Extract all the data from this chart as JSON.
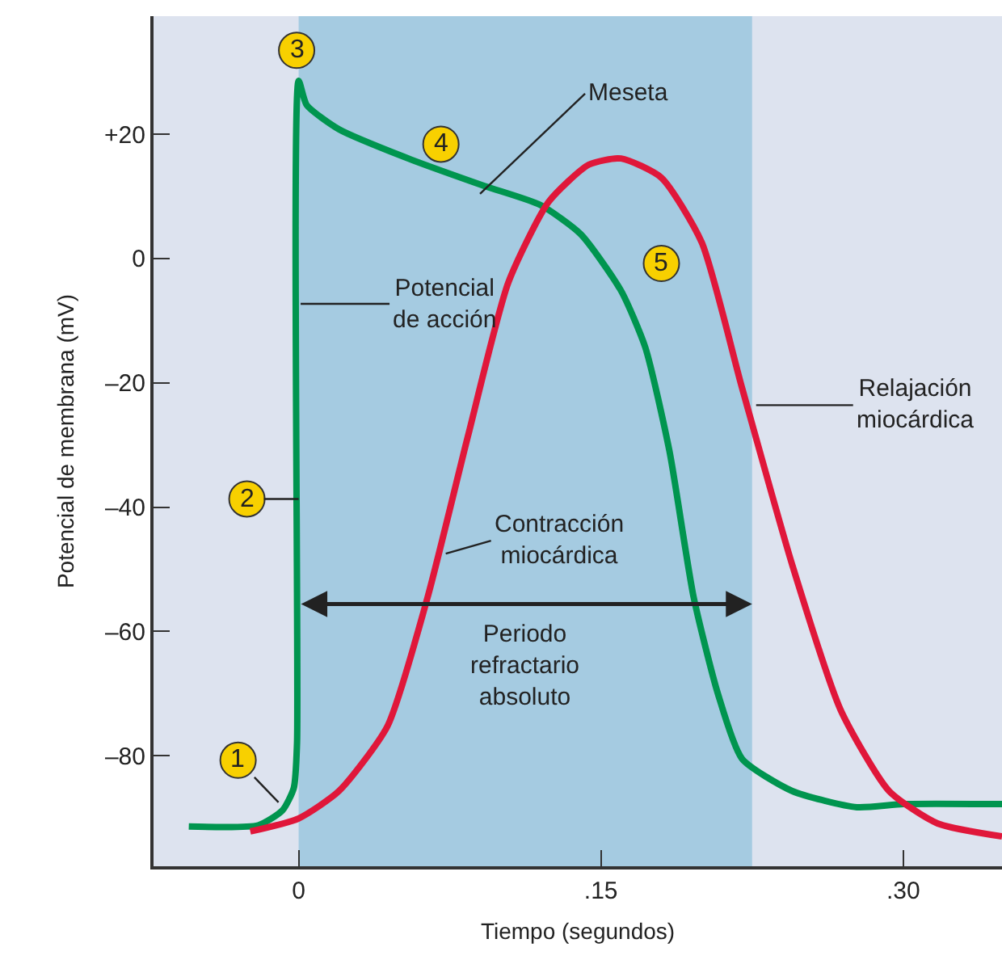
{
  "chart_data": {
    "type": "line",
    "xlabel": "Tiempo (segundos)",
    "ylabel": "Potencial de membrana (mV)",
    "xlim": [
      -0.072,
      0.349
    ],
    "ylim": [
      -97.8,
      39
    ],
    "xticks": [
      {
        "value": 0,
        "label": "0"
      },
      {
        "value": 0.15,
        "label": ".15"
      },
      {
        "value": 0.3,
        "label": ".30"
      }
    ],
    "yticks": [
      {
        "value": 20,
        "label": "+20"
      },
      {
        "value": 0,
        "label": "0"
      },
      {
        "value": -20,
        "label": "–20"
      },
      {
        "value": -40,
        "label": "–40"
      },
      {
        "value": -60,
        "label": "–60"
      },
      {
        "value": -80,
        "label": "–80"
      }
    ],
    "line_style": "solid",
    "marker": "none",
    "series": [
      {
        "color": "#00954f",
        "x": [
          -0.0545,
          -0.02,
          -0.008,
          -0.0024,
          -0.0008,
          0,
          0.004,
          0.02,
          0.052,
          0.092,
          0.12,
          0.14,
          0.16,
          0.172,
          0.184,
          0.196,
          0.208,
          0.22,
          0.245,
          0.277,
          0.3,
          0.349
        ],
        "values": [
          -91.4,
          -91.2,
          -88.8,
          -85.2,
          -78,
          28.6,
          24.7,
          20.8,
          16.4,
          11.7,
          8.6,
          3.9,
          -5.2,
          -14.3,
          -31,
          -54.5,
          -70,
          -80.5,
          -85.7,
          -88.3,
          -87.8,
          -87.8
        ]
      },
      {
        "color": "#e0173a",
        "x": [
          -0.024,
          0,
          0.02,
          0.044,
          0.064,
          0.084,
          0.104,
          0.124,
          0.144,
          0.16,
          0.18,
          0.2,
          0.22,
          0.245,
          0.269,
          0.293,
          0.317,
          0.349
        ],
        "values": [
          -92.2,
          -90.1,
          -85.7,
          -75.3,
          -54.5,
          -28.6,
          -3.9,
          9.1,
          15.1,
          16.1,
          13,
          2.6,
          -20.8,
          -49.4,
          -72.7,
          -85.7,
          -90.9,
          -93
        ]
      }
    ],
    "bands": [
      {
        "axis": "x",
        "from": 0,
        "to": 0.225,
        "label": "Periodo\nrefractario\nabsoluto",
        "color": "#a5cbe1"
      }
    ],
    "annotations": [
      {
        "text": "1",
        "x": -0.01,
        "y": -87.5
      },
      {
        "text": "2",
        "x": 0,
        "y": -38.7
      },
      {
        "text": "3",
        "x": -0.001,
        "y": 33.5
      },
      {
        "text": "4",
        "x": 0.0706,
        "y": 18.4
      },
      {
        "text": "5",
        "x": 0.18,
        "y": -0.8
      },
      {
        "text": "Meseta",
        "x": 0.09,
        "y": 10.4
      },
      {
        "text": "Potencial\nde acción",
        "x": 0.001,
        "y": -7.3
      },
      {
        "text": "Contracción\nmiocárdica",
        "x": 0.073,
        "y": -47.5
      },
      {
        "text": "Relajación\nmiocárdica",
        "x": 0.227,
        "y": -23.6
      }
    ]
  }
}
